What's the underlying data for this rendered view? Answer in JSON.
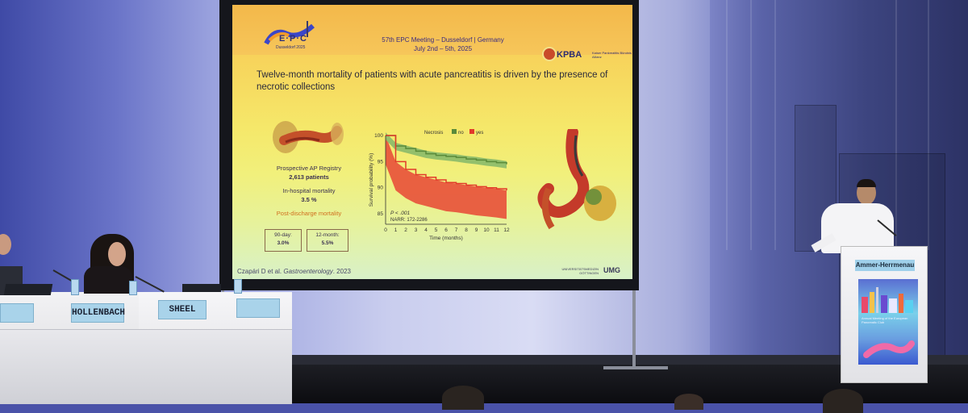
{
  "slide": {
    "logo_text": "E·P·C",
    "logo_subtext": "Dusseldorf 2025",
    "meeting_line1": "57th EPC Meeting – Dusseldorf | Germany",
    "meeting_line2": "July 2nd – 5th, 2025",
    "kpba_label": "KPBA",
    "kpba_subtext": "Kaiser Pankreatitis Bündnis Allianz",
    "headline": "Twelve-month mortality of patients with acute pancreatitis is driven by the presence of necrotic collections",
    "registry_label": "Prospective AP Registry",
    "registry_value": "2,613 patients",
    "inhospital_label": "In-hospital mortality",
    "inhospital_value": "3.5 %",
    "postdischarge_label": "Post-discharge mortality",
    "box_90_label": "90-day:",
    "box_90_value": "3.0%",
    "box_12_label": "12-month:",
    "box_12_value": "5.5%",
    "citation_authors": "Czapári D et al. ",
    "citation_journal": "Gastroenterology",
    "citation_year": ". 2023",
    "footer_university": "UNIVERSITÄTSMEDIZIN GÖTTINGEN",
    "footer_logo": "UMG"
  },
  "chart_data": {
    "type": "line",
    "legend_title": "Necrosis",
    "series": [
      {
        "name": "no",
        "color": "#5a8a3a",
        "x": [
          0,
          1,
          2,
          3,
          4,
          5,
          6,
          7,
          8,
          9,
          10,
          11,
          12
        ],
        "y": [
          100,
          98,
          97.5,
          97,
          96.5,
          96.2,
          96,
          95.8,
          95.5,
          95.3,
          95,
          94.8,
          94.5
        ]
      },
      {
        "name": "yes",
        "color": "#e23a2a",
        "x": [
          0,
          1,
          2,
          3,
          4,
          5,
          6,
          7,
          8,
          9,
          10,
          11,
          12
        ],
        "y": [
          100,
          95,
          93.5,
          92.5,
          92,
          91.5,
          91,
          90.8,
          90.5,
          90.2,
          90,
          89.8,
          89.5
        ]
      }
    ],
    "p_value_text": "P < .001",
    "narr_text": "NARR: 172-2286",
    "xlabel": "Time (months)",
    "ylabel": "Survival probability (%)",
    "xticks": [
      "0",
      "1",
      "2",
      "3",
      "4",
      "5",
      "6",
      "7",
      "8",
      "9",
      "10",
      "11",
      "12"
    ],
    "yticks": [
      "100",
      "95",
      "90",
      "85"
    ],
    "xlim": [
      0,
      12
    ],
    "ylim": [
      83,
      100
    ]
  },
  "stage": {
    "nameplates": [
      "HOLLENBACH",
      "SHEEL"
    ],
    "podium_name": "Ammer-Herrmenau",
    "podium_poster_text": "Annual Meeting of the European Pancreatic Club"
  },
  "colors": {
    "slide_top": "#f3b84a",
    "slide_bottom": "#d8f1c8",
    "nameplate": "#a9d3ea",
    "stage_light": "#4a52a8"
  }
}
